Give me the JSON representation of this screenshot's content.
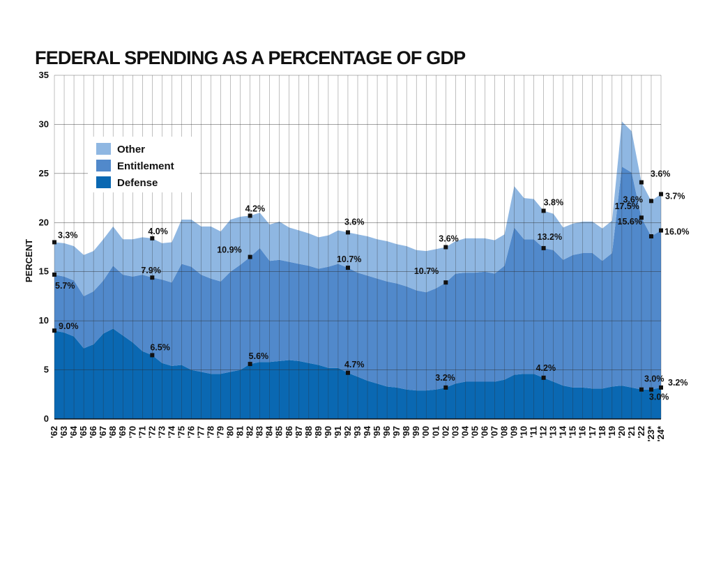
{
  "chart_data": {
    "type": "area",
    "title": "FEDERAL SPENDING AS A PERCENTAGE OF GDP",
    "ylabel": "PERCENT",
    "xlabel": "",
    "ylim": [
      0,
      35
    ],
    "yticks": [
      0,
      5,
      10,
      15,
      20,
      25,
      30,
      35
    ],
    "grid": {
      "horizontal": true,
      "vertical": true
    },
    "stacked": true,
    "legend_position": "upper-left",
    "categories": [
      "'62",
      "'63",
      "'64",
      "'65",
      "'66",
      "'67",
      "'68",
      "'69",
      "'70",
      "'71",
      "'72",
      "'73",
      "'74",
      "'75",
      "'76",
      "'77",
      "'78",
      "'79",
      "'80",
      "'81",
      "'82",
      "'83",
      "'84",
      "'85",
      "'86",
      "'87",
      "'88",
      "'89",
      "'90",
      "'91",
      "'92",
      "'93",
      "'94",
      "'95",
      "'96",
      "'97",
      "'98",
      "'99",
      "'00",
      "'01",
      "'02",
      "'03",
      "'04",
      "'05",
      "'06",
      "'07",
      "'08",
      "'09",
      "'10",
      "'11",
      "'12",
      "'13",
      "'14",
      "'15",
      "'16",
      "'17",
      "'18",
      "'19",
      "'20",
      "'21",
      "'22",
      "'23*",
      "'24*"
    ],
    "series": [
      {
        "name": "Defense",
        "color": "#0a68b2",
        "values": [
          9.0,
          8.8,
          8.4,
          7.2,
          7.6,
          8.7,
          9.2,
          8.5,
          7.8,
          6.9,
          6.5,
          5.7,
          5.4,
          5.5,
          5.0,
          4.8,
          4.6,
          4.6,
          4.8,
          5.0,
          5.6,
          5.8,
          5.8,
          5.9,
          6.0,
          5.9,
          5.7,
          5.5,
          5.2,
          5.2,
          4.7,
          4.3,
          3.9,
          3.6,
          3.3,
          3.2,
          3.0,
          2.9,
          2.9,
          3.0,
          3.2,
          3.6,
          3.8,
          3.8,
          3.8,
          3.8,
          4.0,
          4.5,
          4.6,
          4.6,
          4.2,
          3.8,
          3.4,
          3.2,
          3.2,
          3.1,
          3.1,
          3.3,
          3.4,
          3.2,
          3.0,
          3.0,
          3.2
        ]
      },
      {
        "name": "Entitlement",
        "color": "#5189cb",
        "values": [
          5.7,
          5.7,
          5.7,
          5.3,
          5.4,
          5.4,
          6.4,
          6.2,
          6.7,
          7.8,
          7.9,
          8.5,
          8.5,
          10.3,
          10.5,
          9.9,
          9.7,
          9.4,
          10.2,
          10.7,
          10.9,
          11.6,
          10.3,
          10.3,
          10.0,
          9.9,
          9.9,
          9.8,
          10.3,
          10.6,
          10.7,
          10.6,
          10.7,
          10.7,
          10.7,
          10.6,
          10.5,
          10.2,
          10.0,
          10.3,
          10.7,
          11.2,
          11.1,
          11.1,
          11.2,
          11.0,
          11.6,
          15.0,
          13.7,
          13.7,
          13.2,
          13.4,
          12.8,
          13.5,
          13.7,
          13.8,
          13.0,
          13.6,
          22.3,
          21.9,
          17.5,
          15.6,
          16.0
        ]
      },
      {
        "name": "Other",
        "color": "#8fb7e2",
        "values": [
          3.3,
          3.4,
          3.5,
          4.2,
          4.1,
          4.2,
          4.0,
          3.6,
          3.8,
          3.8,
          4.0,
          3.7,
          4.1,
          4.5,
          4.8,
          4.9,
          5.3,
          5.1,
          5.3,
          4.9,
          4.2,
          3.6,
          3.7,
          3.9,
          3.5,
          3.4,
          3.3,
          3.2,
          3.2,
          3.4,
          3.6,
          3.9,
          4.0,
          4.0,
          4.1,
          4.0,
          4.1,
          4.1,
          4.2,
          4.0,
          3.6,
          3.3,
          3.5,
          3.5,
          3.4,
          3.4,
          3.2,
          4.2,
          4.2,
          4.1,
          3.8,
          3.7,
          3.3,
          3.2,
          3.2,
          3.2,
          3.3,
          3.3,
          4.6,
          4.2,
          3.6,
          3.6,
          3.7
        ]
      }
    ],
    "annotations": [
      {
        "label": "3.3%",
        "x": "'62",
        "y": 18.0
      },
      {
        "label": "5.7%",
        "x": "'62",
        "y": 14.7
      },
      {
        "label": "9.0%",
        "x": "'62",
        "y": 9.0
      },
      {
        "label": "4.0%",
        "x": "'72",
        "y": 18.4
      },
      {
        "label": "7.9%",
        "x": "'72",
        "y": 14.4
      },
      {
        "label": "6.5%",
        "x": "'72",
        "y": 6.5
      },
      {
        "label": "4.2%",
        "x": "'82",
        "y": 20.7
      },
      {
        "label": "10.9%",
        "x": "'82",
        "y": 16.5
      },
      {
        "label": "5.6%",
        "x": "'82",
        "y": 5.6
      },
      {
        "label": "3.6%",
        "x": "'92",
        "y": 19.0
      },
      {
        "label": "10.7%",
        "x": "'92",
        "y": 15.4
      },
      {
        "label": "4.7%",
        "x": "'92",
        "y": 4.7
      },
      {
        "label": "3.6%",
        "x": "'02",
        "y": 17.5
      },
      {
        "label": "10.7%",
        "x": "'02",
        "y": 13.9
      },
      {
        "label": "3.2%",
        "x": "'02",
        "y": 3.2
      },
      {
        "label": "3.8%",
        "x": "'12",
        "y": 21.2
      },
      {
        "label": "13.2%",
        "x": "'12",
        "y": 17.4
      },
      {
        "label": "4.2%",
        "x": "'12",
        "y": 4.2
      },
      {
        "label": "3.6%",
        "x": "'22",
        "y": 24.1
      },
      {
        "label": "17.5%",
        "x": "'22",
        "y": 20.5
      },
      {
        "label": "3.0%",
        "x": "'22",
        "y": 3.0
      },
      {
        "label": "3.6%",
        "x": "'23*",
        "y": 22.2
      },
      {
        "label": "15.6%",
        "x": "'23*",
        "y": 18.6
      },
      {
        "label": "3.0%",
        "x": "'23*",
        "y": 3.0
      },
      {
        "label": "3.7%",
        "x": "'24*",
        "y": 22.9
      },
      {
        "label": "16.0%",
        "x": "'24*",
        "y": 19.2
      },
      {
        "label": "3.2%",
        "x": "'24*",
        "y": 3.2
      }
    ]
  }
}
